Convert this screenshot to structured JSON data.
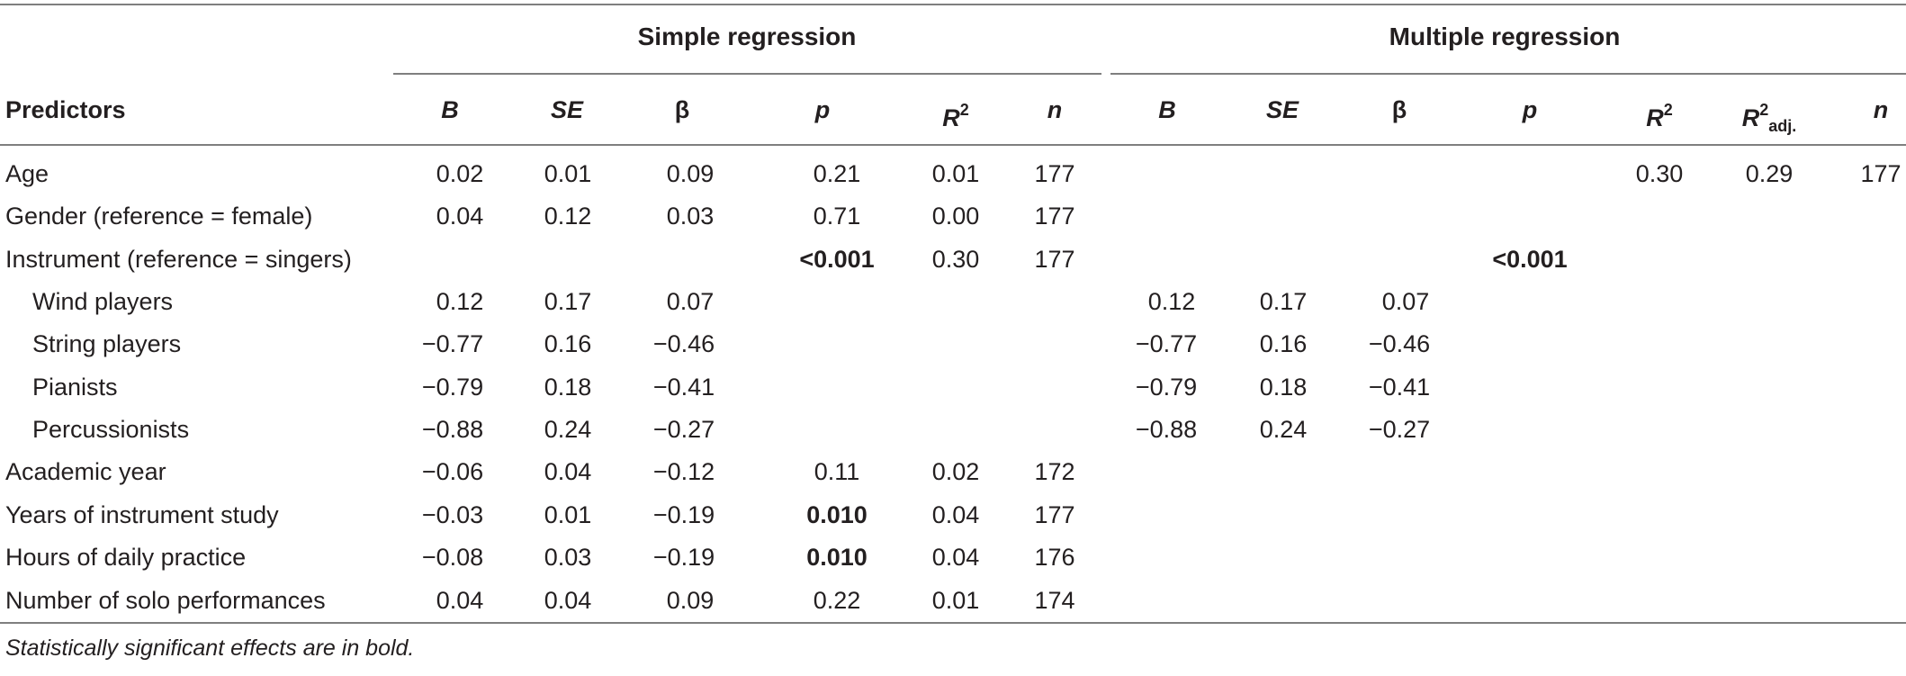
{
  "groups": {
    "simple": "Simple regression",
    "multiple": "Multiple regression"
  },
  "headers": {
    "predictors": "Predictors",
    "simple": {
      "B": "B",
      "SE": "SE",
      "beta": "β",
      "p": "p",
      "R": "R",
      "R_sup": "2",
      "n": "n"
    },
    "multiple": {
      "B": "B",
      "SE": "SE",
      "beta": "β",
      "p": "p",
      "R": "R",
      "R_sup": "2",
      "Radj": "R",
      "Radj_sup": "2",
      "Radj_sub": "adj.",
      "n": "n"
    }
  },
  "rows": [
    {
      "label": "Age",
      "s": [
        "0.02",
        "0.01",
        "0.09",
        "0.21",
        "0.01",
        "177"
      ],
      "m": [
        "",
        "",
        "",
        "",
        "0.30",
        "0.29",
        "177"
      ]
    },
    {
      "label": "Gender (reference = female)",
      "s": [
        "0.04",
        "0.12",
        "0.03",
        "0.71",
        "0.00",
        "177"
      ],
      "m": [
        "",
        "",
        "",
        "",
        "",
        "",
        ""
      ]
    },
    {
      "label": "Instrument (reference = singers)",
      "s": [
        "",
        "",
        "",
        "<0.001",
        "0.30",
        "177"
      ],
      "m": [
        "",
        "",
        "",
        "<0.001",
        "",
        "",
        ""
      ]
    },
    {
      "label": "Wind players",
      "s": [
        "0.12",
        "0.17",
        "0.07",
        "",
        "",
        ""
      ],
      "m": [
        "0.12",
        "0.17",
        "0.07",
        "",
        "",
        "",
        ""
      ]
    },
    {
      "label": "String players",
      "s": [
        "−0.77",
        "0.16",
        "−0.46",
        "",
        "",
        ""
      ],
      "m": [
        "−0.77",
        "0.16",
        "−0.46",
        "",
        "",
        "",
        ""
      ]
    },
    {
      "label": "Pianists",
      "s": [
        "−0.79",
        "0.18",
        "−0.41",
        "",
        "",
        ""
      ],
      "m": [
        "−0.79",
        "0.18",
        "−0.41",
        "",
        "",
        "",
        ""
      ]
    },
    {
      "label": "Percussionists",
      "s": [
        "−0.88",
        "0.24",
        "−0.27",
        "",
        "",
        ""
      ],
      "m": [
        "−0.88",
        "0.24",
        "−0.27",
        "",
        "",
        "",
        ""
      ]
    },
    {
      "label": "Academic year",
      "s": [
        "−0.06",
        "0.04",
        "−0.12",
        "0.11",
        "0.02",
        "172"
      ],
      "m": [
        "",
        "",
        "",
        "",
        "",
        "",
        ""
      ]
    },
    {
      "label": "Years of instrument study",
      "s": [
        "−0.03",
        "0.01",
        "−0.19",
        "0.010",
        "0.04",
        "177"
      ],
      "m": [
        "",
        "",
        "",
        "",
        "",
        "",
        ""
      ]
    },
    {
      "label": "Hours of daily practice",
      "s": [
        "−0.08",
        "0.03",
        "−0.19",
        "0.010",
        "0.04",
        "176"
      ],
      "m": [
        "",
        "",
        "",
        "",
        "",
        "",
        ""
      ]
    },
    {
      "label": "Number of solo performances",
      "s": [
        "0.04",
        "0.04",
        "0.09",
        "0.22",
        "0.01",
        "174"
      ],
      "m": [
        "",
        "",
        "",
        "",
        "",
        "",
        ""
      ]
    }
  ],
  "footnote": "Statistically significant effects are in bold."
}
